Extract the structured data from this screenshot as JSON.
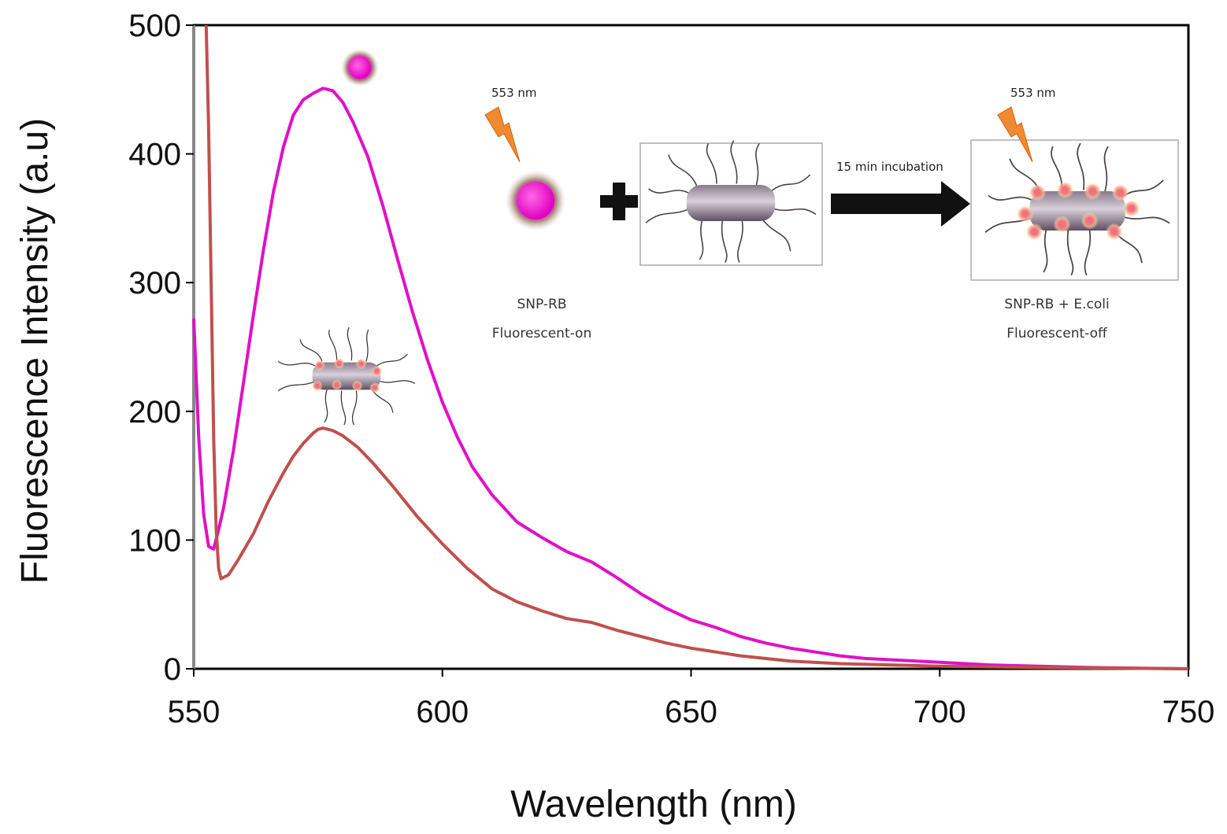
{
  "chart_data": {
    "type": "line",
    "xlabel": "Wavelength (nm)",
    "ylabel": "Fluorescence Intensity (a.u)",
    "xlim": [
      550,
      750
    ],
    "ylim": [
      0,
      500
    ],
    "x_ticks": [
      "550",
      "600",
      "650",
      "700",
      "750"
    ],
    "y_ticks": [
      "0",
      "100",
      "200",
      "300",
      "400",
      "500"
    ],
    "grid": false,
    "legend": "none",
    "series": [
      {
        "color": "#e010c8",
        "points": [
          [
            550.0,
            272
          ],
          [
            551.0,
            180
          ],
          [
            552.0,
            120
          ],
          [
            553.0,
            95
          ],
          [
            554.0,
            93
          ],
          [
            555.0,
            108
          ],
          [
            556.0,
            125
          ],
          [
            558.0,
            170
          ],
          [
            560.0,
            222
          ],
          [
            562.0,
            275
          ],
          [
            564.0,
            325
          ],
          [
            566.0,
            370
          ],
          [
            568.0,
            405
          ],
          [
            570.0,
            430
          ],
          [
            572.0,
            442
          ],
          [
            574.0,
            447
          ],
          [
            576.0,
            451
          ],
          [
            578.0,
            449
          ],
          [
            580.0,
            440
          ],
          [
            582.0,
            425
          ],
          [
            585.0,
            398
          ],
          [
            588.0,
            360
          ],
          [
            591.0,
            318
          ],
          [
            594.0,
            277
          ],
          [
            597.0,
            240
          ],
          [
            600.0,
            207
          ],
          [
            603.0,
            180
          ],
          [
            606.0,
            157
          ],
          [
            610.0,
            135
          ],
          [
            615.0,
            114
          ],
          [
            620.0,
            102
          ],
          [
            625.0,
            91
          ],
          [
            630.0,
            83
          ],
          [
            635.0,
            71
          ],
          [
            640.0,
            58
          ],
          [
            645.0,
            47
          ],
          [
            650.0,
            38
          ],
          [
            655.0,
            32
          ],
          [
            660.0,
            25
          ],
          [
            665.0,
            20
          ],
          [
            670.0,
            16
          ],
          [
            675.0,
            13
          ],
          [
            680.0,
            10
          ],
          [
            685.0,
            8
          ],
          [
            690.0,
            7
          ],
          [
            700.0,
            5
          ],
          [
            710.0,
            3
          ],
          [
            720.0,
            2
          ],
          [
            730.0,
            1
          ],
          [
            750.0,
            0
          ]
        ]
      },
      {
        "color": "#c0504d",
        "points": [
          [
            552.5,
            500
          ],
          [
            553.0,
            420
          ],
          [
            553.5,
            300
          ],
          [
            554.0,
            180
          ],
          [
            554.5,
            110
          ],
          [
            555.0,
            78
          ],
          [
            555.5,
            70
          ],
          [
            557.0,
            73
          ],
          [
            559.0,
            85
          ],
          [
            562.0,
            105
          ],
          [
            565.0,
            130
          ],
          [
            568.0,
            152
          ],
          [
            570.0,
            165
          ],
          [
            572.0,
            175
          ],
          [
            574.0,
            183
          ],
          [
            575.0,
            186
          ],
          [
            576.0,
            187
          ],
          [
            578.0,
            185
          ],
          [
            580.0,
            181
          ],
          [
            583.0,
            172
          ],
          [
            586.0,
            160
          ],
          [
            590.0,
            142
          ],
          [
            595.0,
            118
          ],
          [
            600.0,
            97
          ],
          [
            605.0,
            78
          ],
          [
            610.0,
            62
          ],
          [
            615.0,
            52
          ],
          [
            620.0,
            45
          ],
          [
            625.0,
            39
          ],
          [
            630.0,
            36
          ],
          [
            635.0,
            30
          ],
          [
            640.0,
            25
          ],
          [
            645.0,
            20
          ],
          [
            650.0,
            16
          ],
          [
            655.0,
            13
          ],
          [
            660.0,
            10
          ],
          [
            670.0,
            6
          ],
          [
            680.0,
            4
          ],
          [
            690.0,
            3
          ],
          [
            700.0,
            2
          ],
          [
            720.0,
            1
          ],
          [
            750.0,
            0
          ]
        ]
      }
    ],
    "annotations": {
      "left_label_1": "553 nm",
      "right_label_1": "553 nm",
      "arrow_label": "15 min incubation",
      "caption_left_line1": "SNP-RB",
      "caption_left_line2": "Fluorescent-on",
      "caption_right_line1": "SNP-RB + E.coli",
      "caption_right_line2": "Fluorescent-off"
    }
  }
}
